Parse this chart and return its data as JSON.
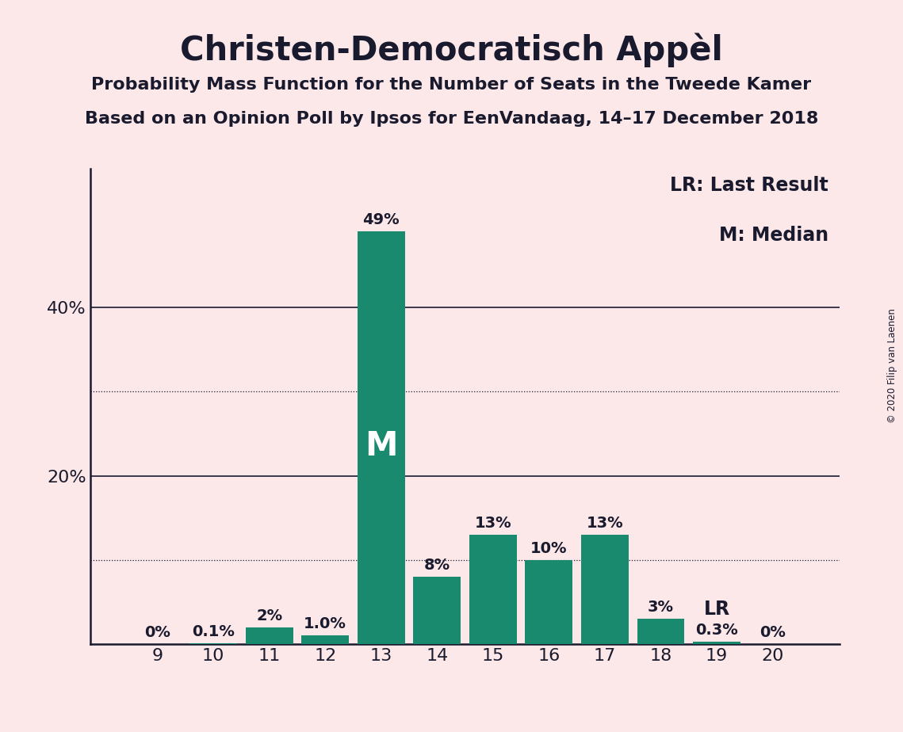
{
  "title": "Christen-Democratisch Appèl",
  "subtitle1": "Probability Mass Function for the Number of Seats in the Tweede Kamer",
  "subtitle2": "Based on an Opinion Poll by Ipsos for EenVandaag, 14–17 December 2018",
  "copyright": "© 2020 Filip van Laenen",
  "seats": [
    9,
    10,
    11,
    12,
    13,
    14,
    15,
    16,
    17,
    18,
    19,
    20
  ],
  "probabilities": [
    0.0,
    0.001,
    0.02,
    0.01,
    0.49,
    0.08,
    0.13,
    0.1,
    0.13,
    0.03,
    0.003,
    0.0
  ],
  "labels": [
    "0%",
    "0.1%",
    "2%",
    "1.0%",
    "49%",
    "8%",
    "13%",
    "10%",
    "13%",
    "3%",
    "0.3%",
    "0%"
  ],
  "bar_color": "#1a8a6e",
  "background_color": "#fce8e8",
  "text_color": "#1a1a2e",
  "median_seat": 13,
  "last_result_seat": 19,
  "solid_lines": [
    0.2,
    0.4
  ],
  "dotted_lines": [
    0.1,
    0.3
  ],
  "ytick_positions": [
    0.2,
    0.4
  ],
  "ytick_labels": [
    "20%",
    "40%"
  ]
}
